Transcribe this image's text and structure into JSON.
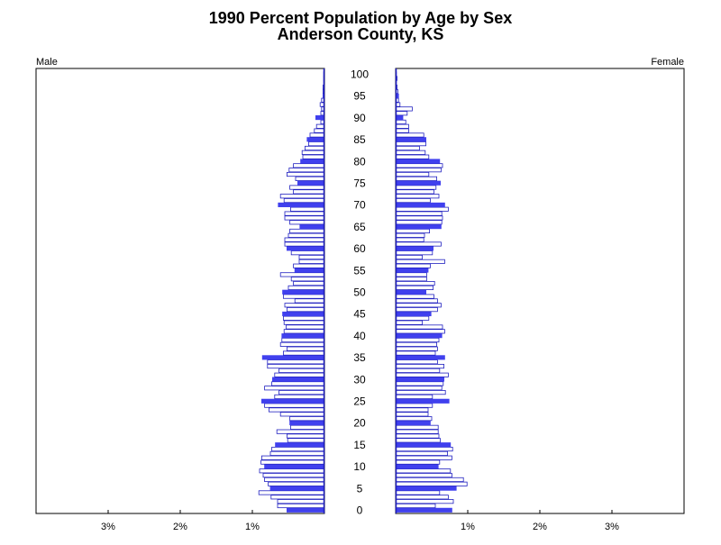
{
  "chart_data": {
    "type": "bar",
    "orientation": "horizontal-pyramid",
    "title": "1990 Percent Population by Age by Sex",
    "subtitle": "Anderson County, KS",
    "left_label": "Male",
    "right_label": "Female",
    "x_tick_values": [
      1,
      2,
      3
    ],
    "x_tick_labels": [
      "1%",
      "2%",
      "3%"
    ],
    "xlim": [
      0,
      4
    ],
    "age_range": [
      0,
      100
    ],
    "age_labels": [
      "0",
      "5",
      "10",
      "15",
      "20",
      "25",
      "30",
      "35",
      "40",
      "45",
      "50",
      "55",
      "60",
      "65",
      "70",
      "75",
      "80",
      "85",
      "90",
      "95",
      "100"
    ],
    "colors": {
      "highlight": "#4040ee",
      "bar_outline": "#2020c0",
      "bar_fill": "#ffffff",
      "frame": "#000000"
    },
    "series": [
      {
        "name": "Male",
        "values": [
          0.52,
          0.65,
          0.65,
          0.74,
          0.91,
          0.75,
          0.78,
          0.83,
          0.85,
          0.9,
          0.83,
          0.88,
          0.87,
          0.75,
          0.73,
          0.68,
          0.51,
          0.52,
          0.66,
          0.47,
          0.48,
          0.48,
          0.61,
          0.77,
          0.83,
          0.87,
          0.69,
          0.63,
          0.83,
          0.73,
          0.72,
          0.69,
          0.63,
          0.79,
          0.79,
          0.86,
          0.57,
          0.52,
          0.61,
          0.59,
          0.59,
          0.56,
          0.53,
          0.56,
          0.57,
          0.58,
          0.52,
          0.55,
          0.41,
          0.57,
          0.58,
          0.5,
          0.43,
          0.46,
          0.61,
          0.41,
          0.43,
          0.35,
          0.35,
          0.46,
          0.52,
          0.55,
          0.55,
          0.5,
          0.48,
          0.34,
          0.48,
          0.55,
          0.55,
          0.47,
          0.64,
          0.56,
          0.61,
          0.43,
          0.48,
          0.37,
          0.4,
          0.52,
          0.49,
          0.43,
          0.33,
          0.3,
          0.31,
          0.27,
          0.22,
          0.24,
          0.2,
          0.14,
          0.11,
          0.05,
          0.12,
          0.05,
          0.04,
          0.06,
          0.04,
          0.02,
          0.02,
          0.02,
          0.01,
          0.01,
          0.01
        ]
      },
      {
        "name": "Female",
        "values": [
          0.78,
          0.55,
          0.8,
          0.73,
          0.61,
          0.84,
          0.99,
          0.94,
          0.78,
          0.76,
          0.59,
          0.61,
          0.78,
          0.72,
          0.79,
          0.76,
          0.62,
          0.6,
          0.59,
          0.59,
          0.48,
          0.5,
          0.45,
          0.45,
          0.51,
          0.74,
          0.51,
          0.69,
          0.64,
          0.66,
          0.67,
          0.73,
          0.61,
          0.67,
          0.58,
          0.68,
          0.55,
          0.58,
          0.57,
          0.6,
          0.64,
          0.68,
          0.65,
          0.37,
          0.46,
          0.49,
          0.58,
          0.63,
          0.58,
          0.53,
          0.42,
          0.52,
          0.54,
          0.43,
          0.43,
          0.45,
          0.48,
          0.68,
          0.37,
          0.51,
          0.52,
          0.63,
          0.39,
          0.4,
          0.47,
          0.63,
          0.64,
          0.65,
          0.64,
          0.73,
          0.68,
          0.48,
          0.6,
          0.53,
          0.56,
          0.62,
          0.57,
          0.46,
          0.63,
          0.65,
          0.61,
          0.46,
          0.41,
          0.33,
          0.42,
          0.42,
          0.39,
          0.18,
          0.18,
          0.14,
          0.1,
          0.16,
          0.23,
          0.06,
          0.04,
          0.04,
          0.03,
          0.02,
          0.01,
          0.02,
          0.01
        ]
      }
    ]
  }
}
